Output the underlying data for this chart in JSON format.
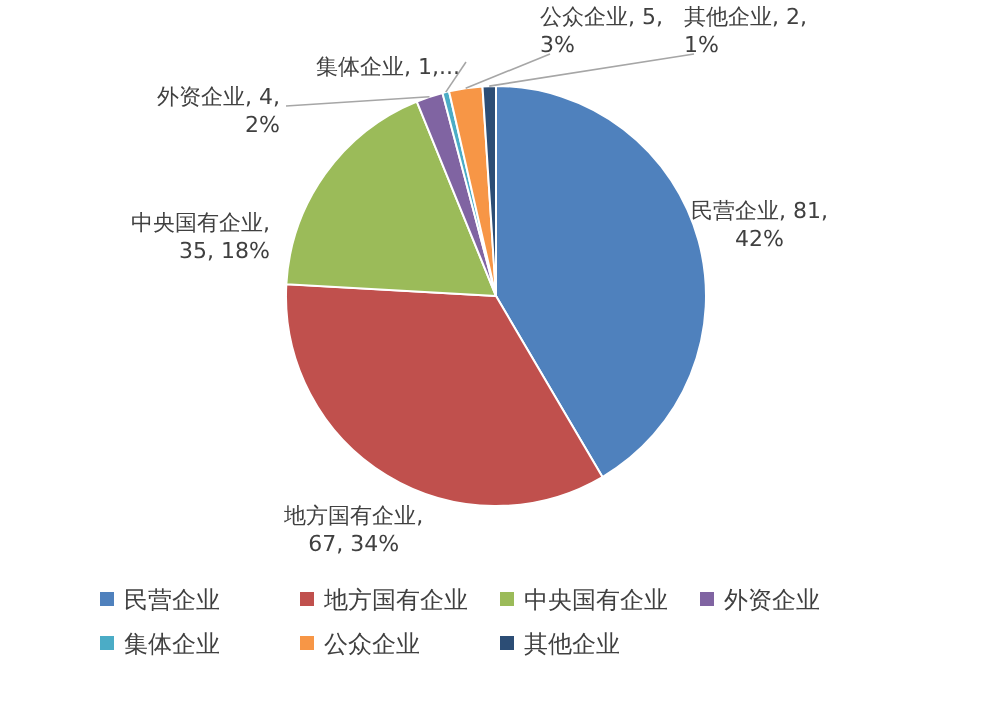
{
  "chart_data": {
    "type": "pie",
    "categories": [
      "民营企业",
      "地方国有企业",
      "中央国有企业",
      "外资企业",
      "集体企业",
      "公众企业",
      "其他企业"
    ],
    "values": [
      81,
      67,
      35,
      4,
      1,
      5,
      2
    ],
    "colors": [
      "#4f81bd",
      "#c0504d",
      "#9bbb59",
      "#8064a2",
      "#4bacc6",
      "#f79646",
      "#2c4d75"
    ],
    "value_labels": [
      "民营企业, 81,\n42%",
      "地方国有企业,\n67, 34%",
      "中央国有企业,\n35, 18%",
      "外资企业, 4,\n2%",
      "集体企业, 1,...",
      "公众企业, 5,\n3%",
      "其他企业, 2,\n1%"
    ],
    "legend": "bottom"
  }
}
